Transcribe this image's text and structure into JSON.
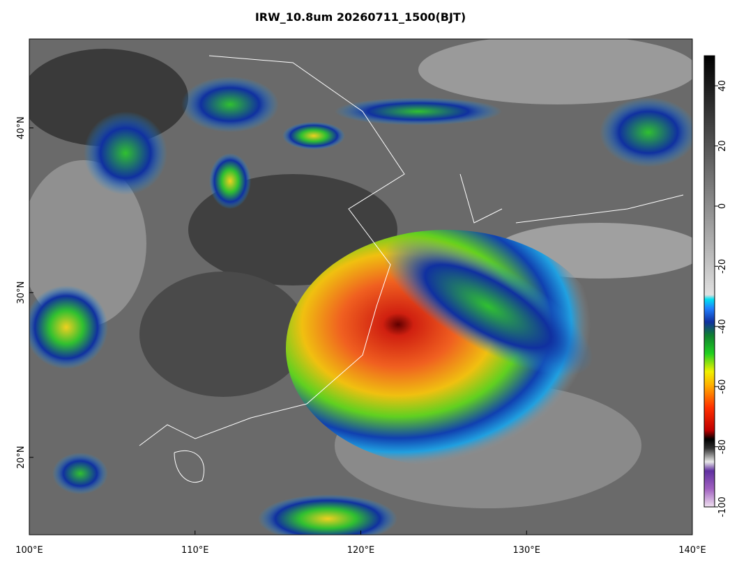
{
  "title": "IRW_10.8um 20260711_1500(BJT)",
  "map": {
    "lonlim": [
      100,
      140
    ],
    "latlim": [
      15.3,
      45.4
    ],
    "lon_ticks": [
      {
        "value": 100,
        "label": "100°E"
      },
      {
        "value": 110,
        "label": "110°E"
      },
      {
        "value": 120,
        "label": "120°E"
      },
      {
        "value": 130,
        "label": "130°E"
      },
      {
        "value": 140,
        "label": "140°E"
      }
    ],
    "lat_ticks": [
      {
        "value": 20,
        "label": "20°N"
      },
      {
        "value": 30,
        "label": "30°N"
      },
      {
        "value": 40,
        "label": "40°N"
      }
    ]
  },
  "colorbar": {
    "lim": [
      -100,
      50
    ],
    "ticks": [
      40,
      20,
      0,
      -20,
      -40,
      -60,
      -80,
      -100
    ]
  }
}
